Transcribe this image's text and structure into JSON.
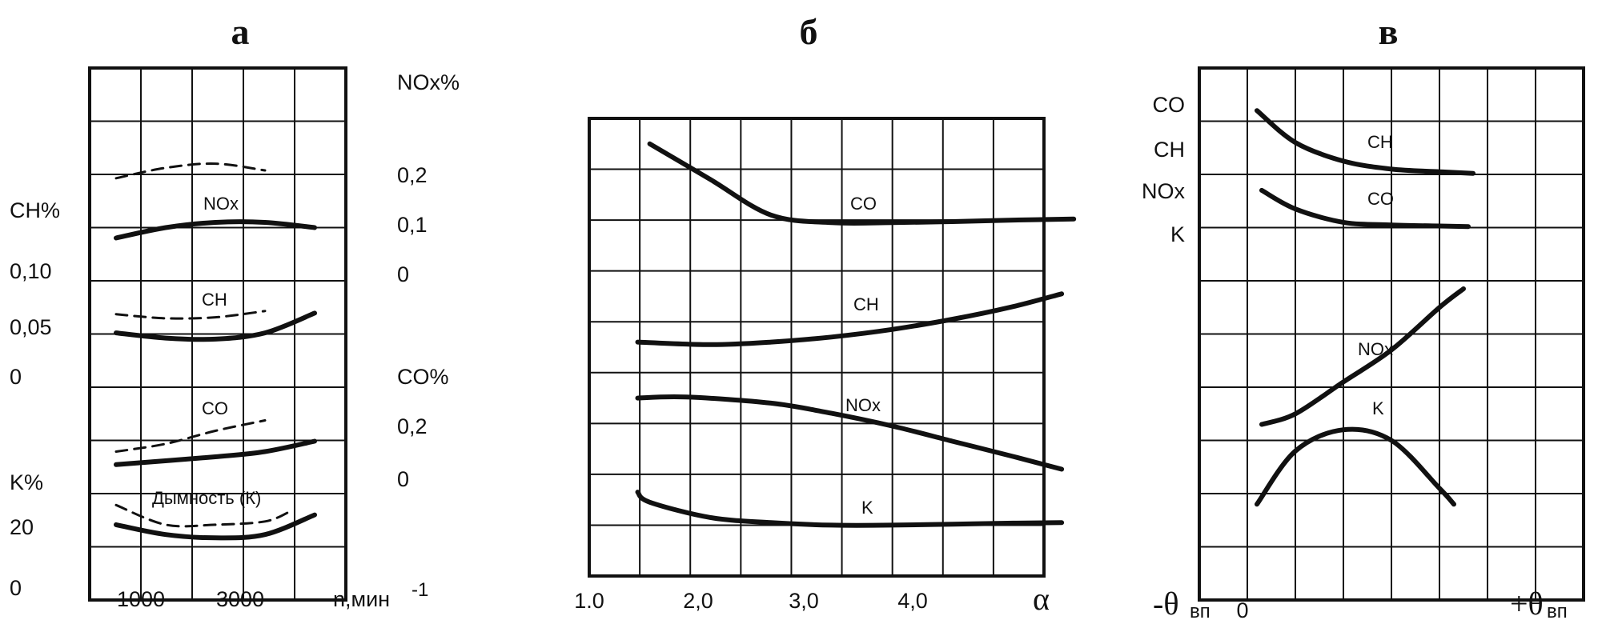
{
  "chart_data": [
    {
      "type": "line",
      "title": "а",
      "xlabel": "n,мин",
      "xlabel_sup": "-1",
      "xticks": [
        "1000",
        "3000"
      ],
      "left_axis_labels": [
        "CH%",
        "0,10",
        "0,05",
        "0",
        "K%",
        "20",
        "0"
      ],
      "right_axis_labels": [
        "NOx%",
        "0,2",
        "0,1",
        "0",
        "CO%",
        "0,2",
        "0"
      ],
      "series_labels": [
        "NOx",
        "CH",
        "CO",
        "Дымность (К)"
      ],
      "series": [
        {
          "name": "NOx",
          "style": "solid",
          "x": [
            500,
            1500,
            2500,
            3500,
            4500
          ],
          "y": [
            0.07,
            0.09,
            0.1,
            0.1,
            0.09
          ]
        },
        {
          "name": "NOx",
          "style": "dashed",
          "x": [
            500,
            1500,
            2500,
            3500
          ],
          "y": [
            0.185,
            0.205,
            0.213,
            0.2
          ]
        },
        {
          "name": "CH",
          "style": "solid",
          "x": [
            500,
            1500,
            2500,
            3500,
            4500
          ],
          "y": [
            0.043,
            0.038,
            0.037,
            0.043,
            0.062
          ]
        },
        {
          "name": "CH",
          "style": "dashed",
          "x": [
            500,
            1500,
            2500,
            3500
          ],
          "y": [
            0.061,
            0.057,
            0.058,
            0.064
          ]
        },
        {
          "name": "CO",
          "style": "solid",
          "x": [
            500,
            2500,
            3500,
            4500
          ],
          "y": [
            0.05,
            0.08,
            0.1,
            0.14
          ]
        },
        {
          "name": "CO",
          "style": "dashed",
          "x": [
            500,
            1500,
            2500,
            3500
          ],
          "y": [
            0.1,
            0.13,
            0.18,
            0.22
          ]
        },
        {
          "name": "Дымность (К)",
          "style": "solid",
          "x": [
            500,
            1500,
            2500,
            3500,
            4500
          ],
          "y": [
            21,
            18,
            17,
            18,
            24
          ]
        },
        {
          "name": "Дымность (К)",
          "style": "dashed",
          "x": [
            500,
            1500,
            2500,
            3500,
            4000
          ],
          "y": [
            27,
            21,
            21,
            22,
            25
          ]
        }
      ]
    },
    {
      "type": "line",
      "title": "б",
      "xlabel": "α",
      "xticks": [
        "1.0",
        "2,0",
        "3,0",
        "4,0"
      ],
      "series_labels": [
        "CO",
        "CH",
        "NOx",
        "K"
      ],
      "series": [
        {
          "name": "CO",
          "x": [
            1.5,
            2.0,
            2.5,
            3.0,
            3.5,
            4.0,
            4.5,
            5.0
          ],
          "y": [
            8.5,
            7.8,
            7.1,
            6.95,
            6.95,
            6.97,
            7.0,
            7.02
          ]
        },
        {
          "name": "CH",
          "x": [
            1.4,
            2.0,
            2.5,
            3.0,
            3.5,
            4.0,
            4.5,
            4.9
          ],
          "y": [
            4.6,
            4.55,
            4.6,
            4.7,
            4.85,
            5.05,
            5.3,
            5.55
          ]
        },
        {
          "name": "NOx",
          "x": [
            1.4,
            1.8,
            2.5,
            3.0,
            3.5,
            4.0,
            4.5,
            4.9
          ],
          "y": [
            3.5,
            3.52,
            3.4,
            3.2,
            2.95,
            2.65,
            2.35,
            2.1
          ]
        },
        {
          "name": "K",
          "x": [
            1.4,
            1.5,
            2.0,
            2.5,
            3.0,
            3.5,
            4.0,
            4.5,
            4.9
          ],
          "y": [
            1.65,
            1.45,
            1.15,
            1.05,
            1.0,
            1.0,
            1.02,
            1.04,
            1.05
          ]
        }
      ]
    },
    {
      "type": "line",
      "title": "в",
      "xlabel_left": "-θ",
      "xlabel_right": "+θ",
      "xlabel_sub": "вп",
      "xticks": [
        "0"
      ],
      "left_axis_labels": [
        "CO",
        "CH",
        "NOx",
        "K"
      ],
      "series_labels": [
        "CH",
        "CO",
        "NOx",
        "K"
      ],
      "series": [
        {
          "name": "CH",
          "x": [
            1.2,
            2.0,
            3.0,
            4.0,
            5.0,
            5.7
          ],
          "y": [
            9.2,
            8.6,
            8.25,
            8.1,
            8.05,
            8.02
          ]
        },
        {
          "name": "CO",
          "x": [
            1.3,
            2.0,
            3.0,
            4.0,
            5.0,
            5.6
          ],
          "y": [
            7.7,
            7.35,
            7.1,
            7.05,
            7.03,
            7.02
          ]
        },
        {
          "name": "NOx",
          "x": [
            1.3,
            2.0,
            3.0,
            4.0,
            5.0,
            5.5
          ],
          "y": [
            3.3,
            3.5,
            4.1,
            4.7,
            5.5,
            5.85
          ]
        },
        {
          "name": "K",
          "x": [
            1.2,
            2.0,
            3.0,
            4.0,
            5.0,
            5.3
          ],
          "y": [
            1.8,
            2.8,
            3.2,
            3.0,
            2.1,
            1.8
          ]
        }
      ]
    }
  ]
}
